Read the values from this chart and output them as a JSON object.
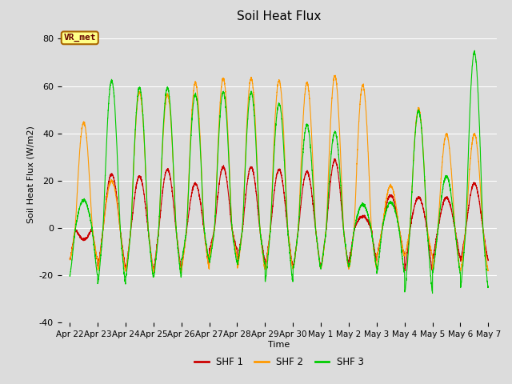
{
  "title": "Soil Heat Flux",
  "ylabel": "Soil Heat Flux (W/m2)",
  "xlabel": "Time",
  "ylim": [
    -40,
    85
  ],
  "yticks": [
    -40,
    -20,
    0,
    20,
    40,
    60,
    80
  ],
  "background_color": "#dcdcdc",
  "plot_bg_color": "#dcdcdc",
  "line_colors": {
    "SHF 1": "#cc0000",
    "SHF 2": "#ff9900",
    "SHF 3": "#00cc00"
  },
  "line_width": 0.8,
  "annotation_text": "VR_met",
  "annotation_box_color": "#ffff88",
  "annotation_box_edge": "#aa6600",
  "annotation_text_color": "#660000",
  "n_days": 15,
  "grid_color": "#ffffff",
  "tick_labels": [
    "Apr 22",
    "Apr 23",
    "Apr 24",
    "Apr 25",
    "Apr 26",
    "Apr 27",
    "Apr 28",
    "Apr 29",
    "Apr 30",
    "May 1",
    "May 2",
    "May 3",
    "May 4",
    "May 5",
    "May 6",
    "May 7"
  ]
}
